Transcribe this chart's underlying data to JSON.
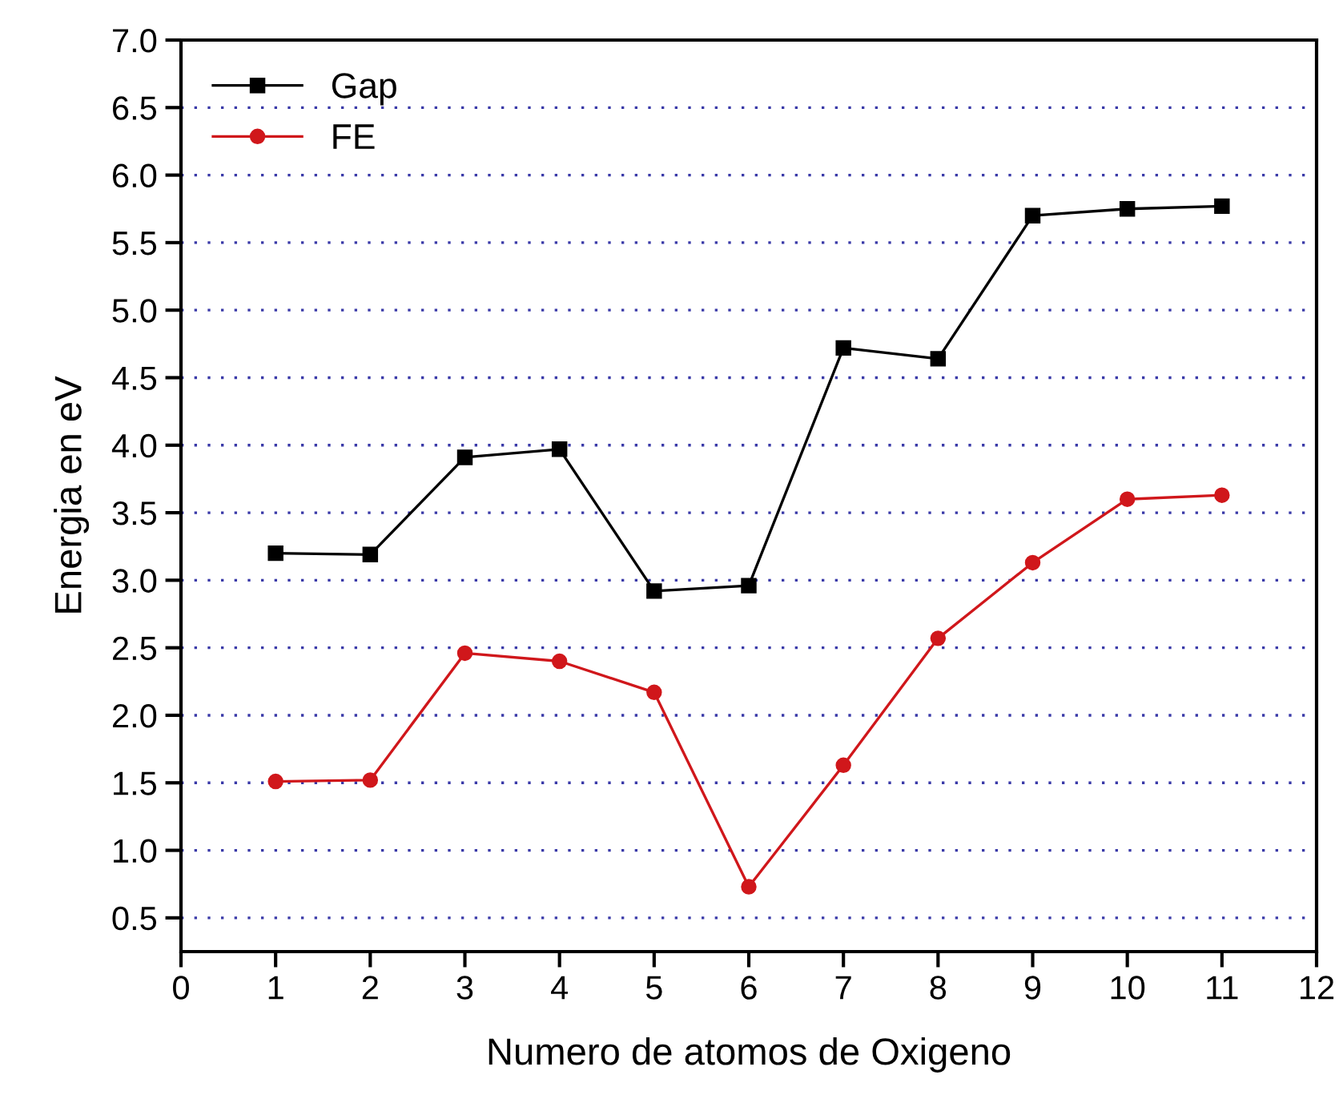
{
  "chart_data": {
    "type": "line",
    "xlabel": "Numero de atomos de Oxigeno",
    "ylabel": "Energia en eV",
    "x": [
      1,
      2,
      3,
      4,
      5,
      6,
      7,
      8,
      9,
      10,
      11
    ],
    "series": [
      {
        "name": "Gap",
        "color": "#000000",
        "marker": "square",
        "values": [
          3.2,
          3.19,
          3.91,
          3.97,
          2.92,
          2.96,
          4.72,
          4.64,
          5.7,
          5.75,
          5.77
        ]
      },
      {
        "name": "FE",
        "color": "#d0171b",
        "marker": "circle",
        "values": [
          1.51,
          1.52,
          2.46,
          2.4,
          2.17,
          0.73,
          1.63,
          2.57,
          3.13,
          3.6,
          3.63
        ]
      }
    ],
    "xlim": [
      0,
      12
    ],
    "xticks": [
      0,
      1,
      2,
      3,
      4,
      5,
      6,
      7,
      8,
      9,
      10,
      11,
      12
    ],
    "ylim": [
      0.25,
      7.0
    ],
    "yticks": [
      {
        "value": 0.5,
        "label": "0.5"
      },
      {
        "value": 1,
        "label": "1.0"
      },
      {
        "value": 1.5,
        "label": "1.5"
      },
      {
        "value": 2,
        "label": "2.0"
      },
      {
        "value": 2.5,
        "label": "2.5"
      },
      {
        "value": 3,
        "label": "3.0"
      },
      {
        "value": 3.5,
        "label": "3.5"
      },
      {
        "value": 4,
        "label": "4.0"
      },
      {
        "value": 4.5,
        "label": "4.5"
      },
      {
        "value": 5,
        "label": "5.0"
      },
      {
        "value": 5.5,
        "label": "5.5"
      },
      {
        "value": 6,
        "label": "6.0"
      },
      {
        "value": 6.5,
        "label": "6.5"
      },
      {
        "value": 7,
        "label": "7.0"
      }
    ],
    "grid": "y",
    "legend": "top left",
    "line_style": "solid"
  }
}
